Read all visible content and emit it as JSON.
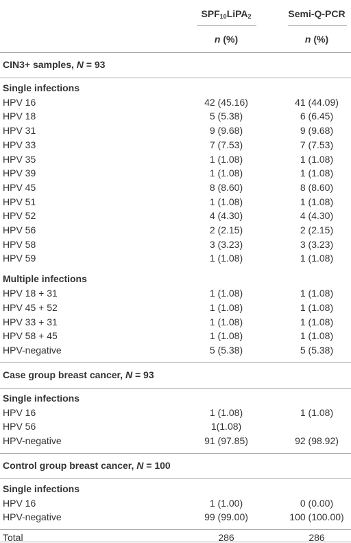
{
  "header": {
    "col1": [
      "SPF",
      "10",
      "LiPA",
      "2"
    ],
    "col2": "Semi-Q-PCR",
    "unit": [
      "n",
      "(%)"
    ]
  },
  "sections": [
    {
      "title": [
        "CIN3+ samples, ",
        "N",
        " = 93"
      ],
      "groups": [
        {
          "title": "Single infections",
          "rows": [
            [
              "HPV 16",
              "42 (45.16)",
              "41 (44.09)"
            ],
            [
              "HPV 18",
              "5 (5.38)",
              "6 (6.45)"
            ],
            [
              "HPV 31",
              "9 (9.68)",
              "9 (9.68)"
            ],
            [
              "HPV 33",
              "7 (7.53)",
              "7 (7.53)"
            ],
            [
              "HPV 35",
              "1 (1.08)",
              "1 (1.08)"
            ],
            [
              "HPV 39",
              "1 (1.08)",
              "1 (1.08)"
            ],
            [
              "HPV 45",
              "8 (8.60)",
              "8 (8.60)"
            ],
            [
              "HPV 51",
              "1 (1.08)",
              "1 (1.08)"
            ],
            [
              "HPV 52",
              "4 (4.30)",
              "4 (4.30)"
            ],
            [
              "HPV 56",
              "2 (2.15)",
              "2 (2.15)"
            ],
            [
              "HPV 58",
              "3 (3.23)",
              "3 (3.23)"
            ],
            [
              "HPV 59",
              "1 (1.08)",
              "1 (1.08)"
            ]
          ]
        },
        {
          "title": "Multiple infections",
          "rows": [
            [
              "HPV 18 + 31",
              "1 (1.08)",
              "1 (1.08)"
            ],
            [
              "HPV 45 + 52",
              "1 (1.08)",
              "1 (1.08)"
            ],
            [
              "HPV 33 + 31",
              "1 (1.08)",
              "1 (1.08)"
            ],
            [
              "HPV 58 + 45",
              "1 (1.08)",
              "1 (1.08)"
            ],
            [
              "HPV-negative",
              "5 (5.38)",
              "5 (5.38)"
            ]
          ]
        }
      ]
    },
    {
      "title": [
        "Case group breast cancer, ",
        "N",
        " = 93"
      ],
      "groups": [
        {
          "title": "Single infections",
          "rows": [
            [
              "HPV 16",
              "1 (1.08)",
              "1 (1.08)"
            ],
            [
              "HPV 56",
              "1(1.08)",
              null
            ],
            [
              "HPV-negative",
              "91 (97.85)",
              "92 (98.92)"
            ]
          ]
        }
      ]
    },
    {
      "title": [
        "Control group breast cancer, ",
        "N",
        " = 100"
      ],
      "groups": [
        {
          "title": "Single infections",
          "rows": [
            [
              "HPV 16",
              "1 (1.00)",
              "0 (0.00)"
            ],
            [
              "HPV-negative",
              "99 (99.00)",
              "100 (100.00)"
            ]
          ]
        }
      ]
    }
  ],
  "total": [
    "Total",
    "286",
    "286"
  ]
}
